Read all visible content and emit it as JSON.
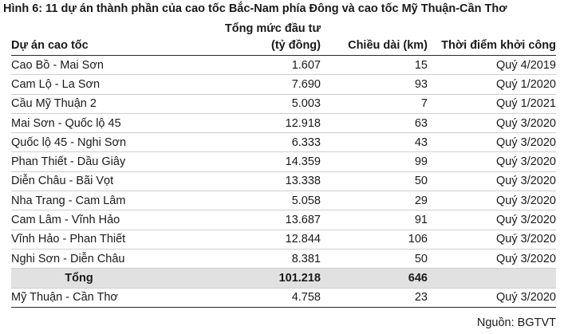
{
  "caption": "Hình 6: 11 dự án thành phần của cao tốc Bắc-Nam phía Đông và cao tốc Mỹ Thuận-Cần Thơ",
  "headers": {
    "project": "Dự án cao tốc",
    "investment_line1": "Tổng mức đầu tư",
    "investment_line2": "(tỷ đồng)",
    "length": "Chiều dài (km)",
    "start": "Thời điểm khởi công"
  },
  "rows": [
    {
      "project": "Cao Bồ - Mai Sơn",
      "investment": "1.607",
      "length": "15",
      "start": "Quý 4/2019"
    },
    {
      "project": "Cam Lộ - La Sơn",
      "investment": "7.690",
      "length": "93",
      "start": "Quý 1/2020"
    },
    {
      "project": "Cầu Mỹ Thuận 2",
      "investment": "5.003",
      "length": "7",
      "start": "Quý 1/2021"
    },
    {
      "project": "Mai Sơn - Quốc lộ 45",
      "investment": "12.918",
      "length": "63",
      "start": "Quý 3/2020"
    },
    {
      "project": "Quốc lộ 45 - Nghi Sơn",
      "investment": "6.333",
      "length": "43",
      "start": "Quý 3/2020"
    },
    {
      "project": "Phan Thiết - Dầu Giây",
      "investment": "14.359",
      "length": "99",
      "start": "Quý 3/2020"
    },
    {
      "project": "Diễn Châu - Bãi Vọt",
      "investment": "13.338",
      "length": "50",
      "start": "Quý 3/2020"
    },
    {
      "project": "Nha Trang - Cam Lâm",
      "investment": "5.058",
      "length": "29",
      "start": "Quý 3/2020"
    },
    {
      "project": "Cam Lâm - Vĩnh Hảo",
      "investment": "13.687",
      "length": "91",
      "start": "Quý 3/2020"
    },
    {
      "project": "Vĩnh Hảo - Phan Thiết",
      "investment": "12.844",
      "length": "106",
      "start": "Quý 3/2020"
    },
    {
      "project": "Nghi Sơn - Diễn Châu",
      "investment": "8.381",
      "length": "50",
      "start": "Quý 3/2020"
    }
  ],
  "total": {
    "label": "Tổng",
    "investment": "101.218",
    "length": "646",
    "start": ""
  },
  "extra": {
    "project": "Mỹ Thuận - Cần Thơ",
    "investment": "4.758",
    "length": "23",
    "start": "Quý 3/2020"
  },
  "source": "Nguồn: BGTVT"
}
